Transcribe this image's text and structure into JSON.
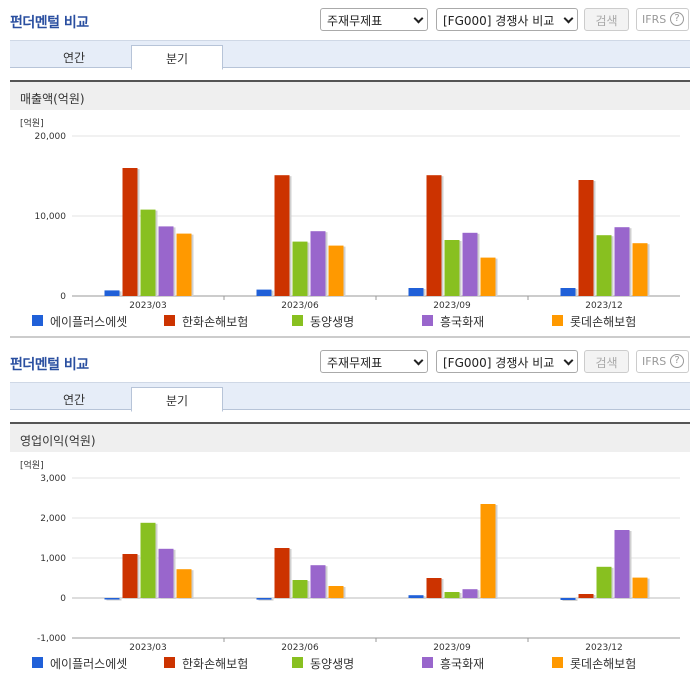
{
  "panels": [
    {
      "title": "펀더멘털 비교",
      "select1": "주재무제표",
      "select2": "[FG000] 경쟁사 비교",
      "search_label": "검색",
      "ifrs_label": "IFRS",
      "ifrs_help": "?",
      "tabs": [
        "연간",
        "분기"
      ],
      "active_tab": 1,
      "section_label": "매출액(억원)",
      "unit_label": "[억원]"
    },
    {
      "title": "펀더멘털 비교",
      "select1": "주재무제표",
      "select2": "[FG000] 경쟁사 비교",
      "search_label": "검색",
      "ifrs_label": "IFRS",
      "ifrs_help": "?",
      "tabs": [
        "연간",
        "분기"
      ],
      "active_tab": 1,
      "section_label": "영업이익(억원)",
      "unit_label": "[억원]"
    }
  ],
  "colors": {
    "title": "#2a4fa0",
    "series": [
      "#2060d8",
      "#cc3300",
      "#88c020",
      "#9966cc",
      "#ff9900"
    ]
  },
  "chart_data": [
    {
      "type": "bar",
      "title": "매출액(억원)",
      "ylabel": "[억원]",
      "categories": [
        "2023/03",
        "2023/06",
        "2023/09",
        "2023/12"
      ],
      "ylim": [
        0,
        20000
      ],
      "yticks": [
        0,
        10000,
        20000
      ],
      "ytick_labels": [
        "0",
        "10,000",
        "20,000"
      ],
      "grid": true,
      "legend": "bottom",
      "series": [
        {
          "name": "에이플러스에셋",
          "values": [
            700,
            800,
            1000,
            1000
          ]
        },
        {
          "name": "한화손해보험",
          "values": [
            16000,
            15100,
            15100,
            14500
          ]
        },
        {
          "name": "동양생명",
          "values": [
            10800,
            6800,
            7000,
            7600
          ]
        },
        {
          "name": "흥국화재",
          "values": [
            8700,
            8100,
            7900,
            8600
          ]
        },
        {
          "name": "롯데손해보험",
          "values": [
            7800,
            6300,
            4800,
            6600
          ]
        }
      ]
    },
    {
      "type": "bar",
      "title": "영업이익(억원)",
      "ylabel": "[억원]",
      "categories": [
        "2023/03",
        "2023/06",
        "2023/09",
        "2023/12"
      ],
      "ylim": [
        -1000,
        3000
      ],
      "yticks": [
        -1000,
        0,
        1000,
        2000,
        3000
      ],
      "ytick_labels": [
        "-1,000",
        "0",
        "1,000",
        "2,000",
        "3,000"
      ],
      "grid": true,
      "legend": "bottom",
      "series": [
        {
          "name": "에이플러스에셋",
          "values": [
            0,
            -40,
            70,
            -50
          ]
        },
        {
          "name": "한화손해보험",
          "values": [
            1100,
            1250,
            500,
            100
          ]
        },
        {
          "name": "동양생명",
          "values": [
            1880,
            450,
            150,
            780
          ]
        },
        {
          "name": "흥국화재",
          "values": [
            1230,
            820,
            220,
            1700
          ]
        },
        {
          "name": "롯데손해보험",
          "values": [
            720,
            300,
            2350,
            510
          ]
        }
      ]
    }
  ]
}
